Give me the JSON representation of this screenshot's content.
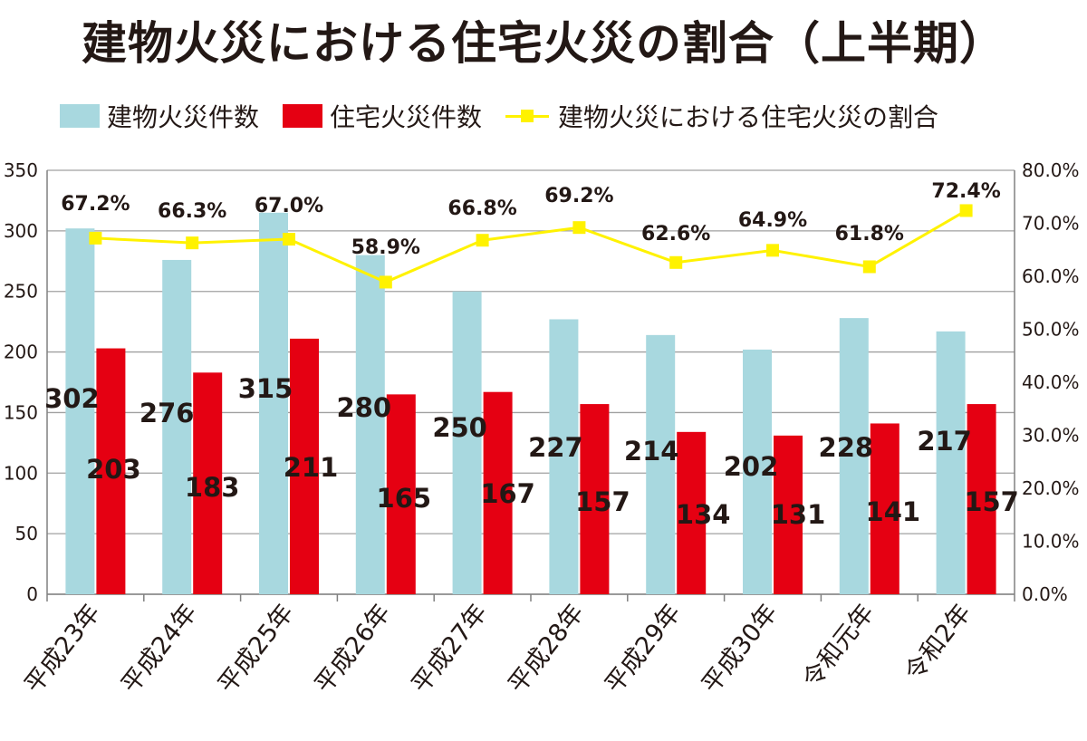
{
  "chart_data": {
    "type": "bar",
    "title": "建物火災における住宅火災の割合（上半期）",
    "categories": [
      "平成23年",
      "平成24年",
      "平成25年",
      "平成26年",
      "平成27年",
      "平成28年",
      "平成29年",
      "平成30年",
      "令和元年",
      "令和2年"
    ],
    "series": [
      {
        "name": "建物火災件数",
        "type": "bar",
        "axis": "left",
        "color": "#a8d8df",
        "values": [
          302,
          276,
          315,
          280,
          250,
          227,
          214,
          202,
          228,
          217
        ],
        "labels": [
          "302",
          "276",
          "315",
          "280",
          "250",
          "227",
          "214",
          "202",
          "228",
          "217"
        ]
      },
      {
        "name": "住宅火災件数",
        "type": "bar",
        "axis": "left",
        "color": "#e50012",
        "values": [
          203,
          183,
          211,
          165,
          167,
          157,
          134,
          131,
          141,
          157
        ],
        "labels": [
          "203",
          "183",
          "211",
          "165",
          "167",
          "157",
          "134",
          "131",
          "141",
          "157"
        ]
      },
      {
        "name": "建物火災における住宅火災の割合",
        "type": "line",
        "axis": "right",
        "color": "#fff200",
        "values": [
          67.2,
          66.3,
          67.0,
          58.9,
          66.8,
          69.2,
          62.6,
          64.9,
          61.8,
          72.4
        ],
        "labels": [
          "67.2%",
          "66.3%",
          "67.0%",
          "58.9%",
          "66.8%",
          "69.2%",
          "62.6%",
          "64.9%",
          "61.8%",
          "72.4%"
        ]
      }
    ],
    "y_left": {
      "min": 0,
      "max": 350,
      "ticks": [
        "0",
        "50",
        "100",
        "150",
        "200",
        "250",
        "300",
        "350"
      ]
    },
    "y_right": {
      "min": 0,
      "max": 80,
      "ticks": [
        "0.0%",
        "10.0%",
        "20.0%",
        "30.0%",
        "40.0%",
        "50.0%",
        "60.0%",
        "70.0%",
        "80.0%"
      ]
    },
    "grid": true,
    "legend_position": "top-left"
  }
}
